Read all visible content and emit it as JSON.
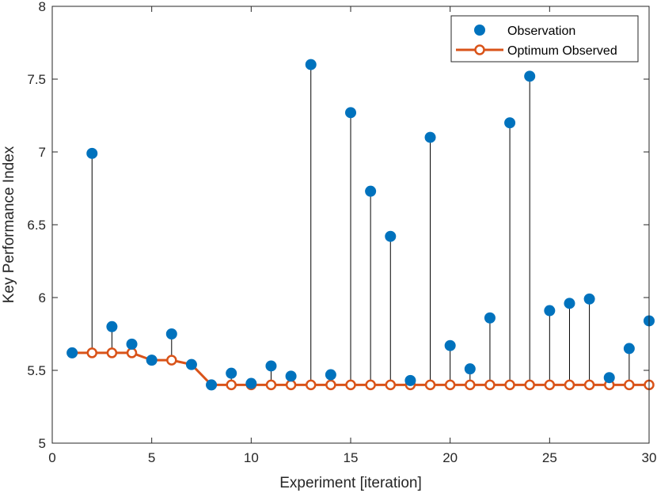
{
  "chart_data": {
    "type": "scatter",
    "title": "",
    "xlabel": "Experiment [iteration]",
    "ylabel": "Key Performance Index",
    "xlim": [
      0,
      30
    ],
    "ylim": [
      5,
      8
    ],
    "xticks": [
      0,
      5,
      10,
      15,
      20,
      25,
      30
    ],
    "yticks": [
      5,
      5.5,
      6,
      6.5,
      7,
      7.5,
      8
    ],
    "xtick_labels": [
      "0",
      "5",
      "10",
      "15",
      "20",
      "25",
      "30"
    ],
    "ytick_labels": [
      "5",
      "5.5",
      "6",
      "6.5",
      "7",
      "7.5",
      "8"
    ],
    "grid": false,
    "legend_position": "top-right",
    "x": [
      1,
      2,
      3,
      4,
      5,
      6,
      7,
      8,
      9,
      10,
      11,
      12,
      13,
      14,
      15,
      16,
      17,
      18,
      19,
      20,
      21,
      22,
      23,
      24,
      25,
      26,
      27,
      28,
      29,
      30
    ],
    "series": [
      {
        "name": "Observation",
        "style": "markers",
        "color": "#0072BD",
        "values": [
          5.62,
          6.99,
          5.8,
          5.68,
          5.57,
          5.75,
          5.54,
          5.4,
          5.48,
          5.41,
          5.53,
          5.46,
          7.6,
          5.47,
          7.27,
          6.73,
          6.42,
          5.43,
          7.1,
          5.67,
          5.51,
          5.86,
          7.2,
          7.52,
          5.91,
          5.96,
          5.99,
          5.45,
          5.65,
          5.84
        ]
      },
      {
        "name": "Optimum Observed",
        "style": "line-with-open-circles",
        "color": "#D95319",
        "values": [
          5.62,
          5.62,
          5.62,
          5.62,
          5.57,
          5.57,
          5.54,
          5.4,
          5.4,
          5.4,
          5.4,
          5.4,
          5.4,
          5.4,
          5.4,
          5.4,
          5.4,
          5.4,
          5.4,
          5.4,
          5.4,
          5.4,
          5.4,
          5.4,
          5.4,
          5.4,
          5.4,
          5.4,
          5.4,
          5.4
        ]
      }
    ]
  }
}
